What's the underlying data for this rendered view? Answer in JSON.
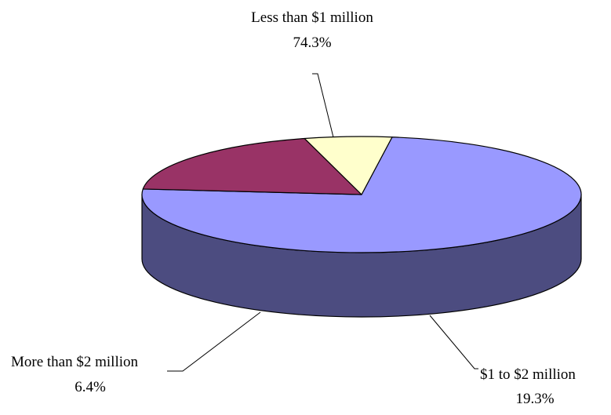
{
  "chart_data": {
    "type": "pie",
    "style": "3d",
    "title": "",
    "slices": [
      {
        "label": "Less than $1 million",
        "value_label": "74.3%",
        "value": 74.3,
        "color": "#9999ff",
        "side_color": "#4c4c80"
      },
      {
        "label": "$1 to $2 million",
        "value_label": "19.3%",
        "value": 19.3,
        "color": "#993366",
        "side_color": "#4d1a33"
      },
      {
        "label": "More than $2 million",
        "value_label": "6.4%",
        "value": 6.4,
        "color": "#ffffcc",
        "side_color": "#808066"
      }
    ],
    "legend": "none"
  }
}
